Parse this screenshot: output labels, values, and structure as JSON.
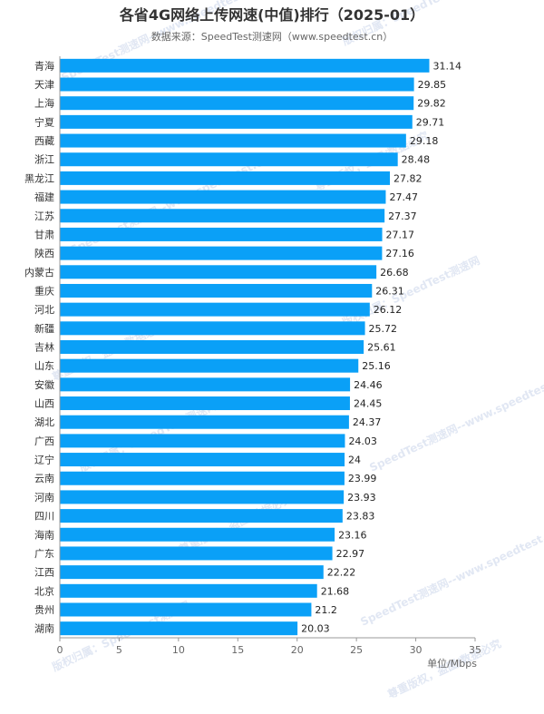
{
  "chart_data": {
    "type": "bar",
    "orientation": "horizontal",
    "title": "各省4G网络上传网速(中值)排行（2025-01）",
    "subtitle": "数据来源：SpeedTest测速网（www.speedtest.cn）",
    "xlabel": "单位/Mbps",
    "xlim": [
      0,
      35
    ],
    "xticks": [
      0,
      5,
      10,
      15,
      20,
      25,
      30,
      35
    ],
    "bar_color": "#0aa0f7",
    "categories": [
      "青海",
      "天津",
      "上海",
      "宁夏",
      "西藏",
      "浙江",
      "黑龙江",
      "福建",
      "江苏",
      "甘肃",
      "陕西",
      "内蒙古",
      "重庆",
      "河北",
      "新疆",
      "吉林",
      "山东",
      "安徽",
      "山西",
      "湖北",
      "广西",
      "辽宁",
      "云南",
      "河南",
      "四川",
      "海南",
      "广东",
      "江西",
      "北京",
      "贵州",
      "湖南"
    ],
    "values": [
      31.14,
      29.85,
      29.82,
      29.71,
      29.18,
      28.48,
      27.82,
      27.47,
      27.37,
      27.17,
      27.16,
      26.68,
      26.31,
      26.12,
      25.72,
      25.61,
      25.16,
      24.46,
      24.45,
      24.37,
      24.03,
      24,
      23.99,
      23.93,
      23.83,
      23.16,
      22.97,
      22.22,
      21.68,
      21.2,
      20.03
    ],
    "watermark": [
      "SpeedTest测速网--www.speedtest.cn",
      "版权归属：SpeedTest测速网",
      "尊重版权，盗图/数据必究"
    ]
  }
}
